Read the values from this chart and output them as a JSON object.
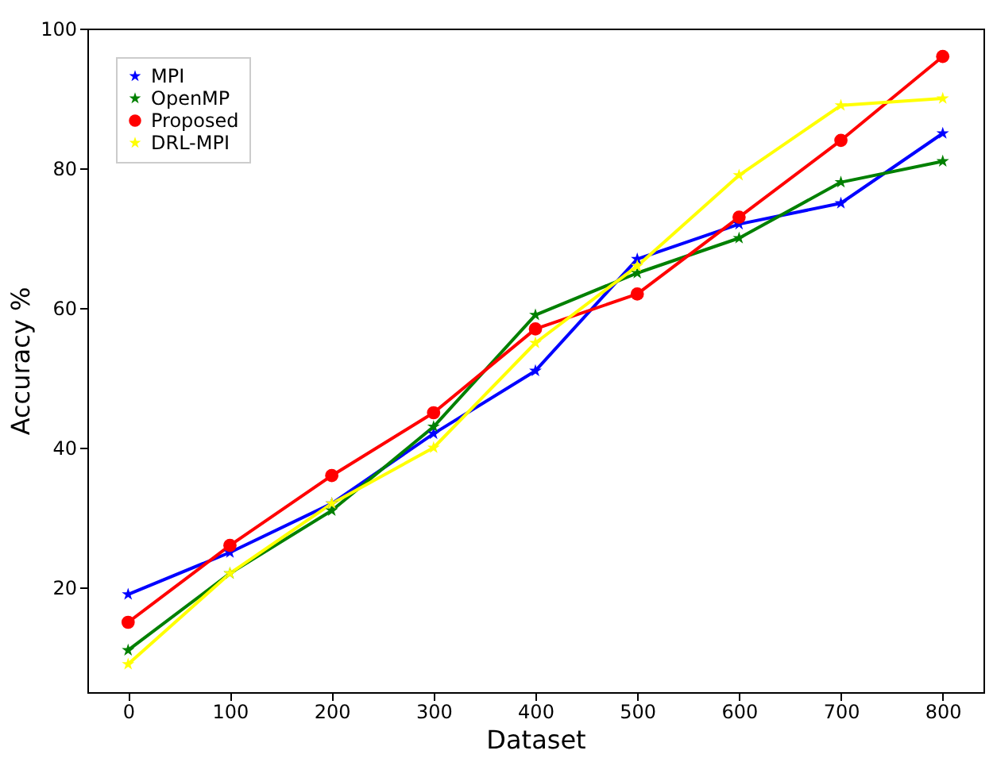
{
  "chart_data": {
    "type": "line",
    "xlabel": "Dataset",
    "ylabel": "Accuracy %",
    "x": [
      0,
      100,
      200,
      300,
      400,
      500,
      600,
      700,
      800
    ],
    "series": [
      {
        "name": "MPI",
        "color": "#0000ff",
        "marker": "star",
        "values": [
          19,
          25,
          32,
          42,
          51,
          67,
          72,
          75,
          85
        ]
      },
      {
        "name": "OpenMP",
        "color": "#008000",
        "marker": "star",
        "values": [
          11,
          22,
          31,
          43,
          59,
          65,
          70,
          78,
          81
        ]
      },
      {
        "name": "Proposed",
        "color": "#ff0000",
        "marker": "circle",
        "values": [
          15,
          26,
          36,
          45,
          57,
          62,
          73,
          84,
          96
        ]
      },
      {
        "name": "DRL-MPI",
        "color": "#ffff00",
        "marker": "star",
        "values": [
          9,
          22,
          32,
          40,
          55,
          66,
          79,
          89,
          90
        ]
      }
    ],
    "xlim": [
      -40,
      840
    ],
    "xticks": [
      0,
      100,
      200,
      300,
      400,
      500,
      600,
      700,
      800
    ],
    "ylim": [
      5,
      100
    ],
    "yticks": [
      20,
      40,
      60,
      80,
      100
    ],
    "legend": "top left",
    "grid": false,
    "line_style": "solid"
  }
}
